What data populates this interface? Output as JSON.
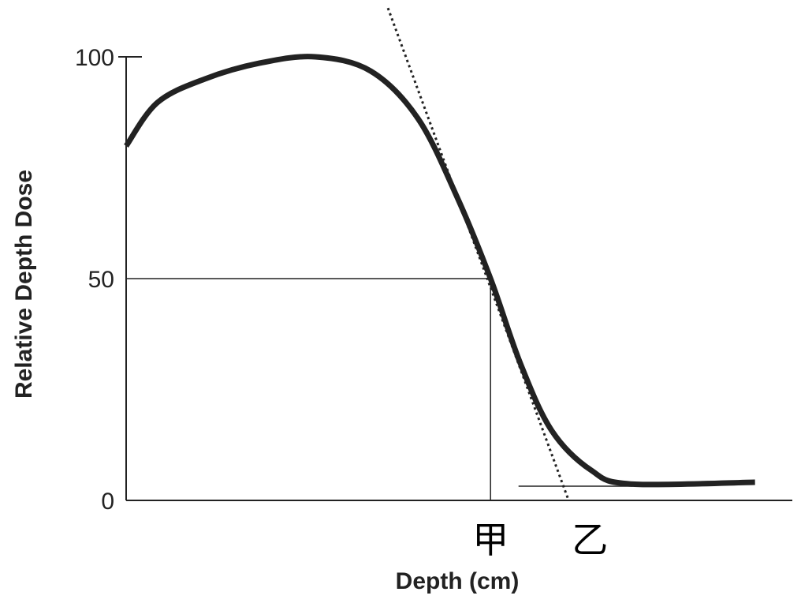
{
  "chart_data": {
    "type": "line",
    "title": "",
    "xlabel": "Depth (cm)",
    "ylabel": "Relative Depth Dose",
    "xlim": [
      0,
      100
    ],
    "ylim": [
      0,
      100
    ],
    "yticks": [
      {
        "value": 0,
        "label": "0"
      },
      {
        "value": 50,
        "label": "50"
      },
      {
        "value": 100,
        "label": "100"
      }
    ],
    "grid": false,
    "series": [
      {
        "style": "solid-thick",
        "color": "#222222",
        "x": [
          0,
          4.7,
          11.8,
          20.1,
          28.4,
          36.7,
          43.8,
          49.7,
          54.7,
          59.2,
          63.9,
          69.8,
          75.7,
          94.4
        ],
        "y": [
          79.9,
          89.7,
          95,
          98.6,
          100,
          96.8,
          86.1,
          68.3,
          50,
          30.8,
          15.7,
          6.8,
          3.7,
          4.1
        ]
      }
    ],
    "annotations": {
      "tangent_line": {
        "style": "dotted",
        "x": [
          39.3,
          66.3
        ],
        "y": [
          111,
          0.5
        ]
      },
      "half_dose_reference": {
        "y": 50,
        "x": 54.7
      },
      "baseline_segment": {
        "y": 3.2,
        "x": [
          58.9,
          76
        ]
      },
      "markers": [
        {
          "label": "甲",
          "x": 54.7
        },
        {
          "label": "乙",
          "x": 66.3
        }
      ]
    }
  }
}
